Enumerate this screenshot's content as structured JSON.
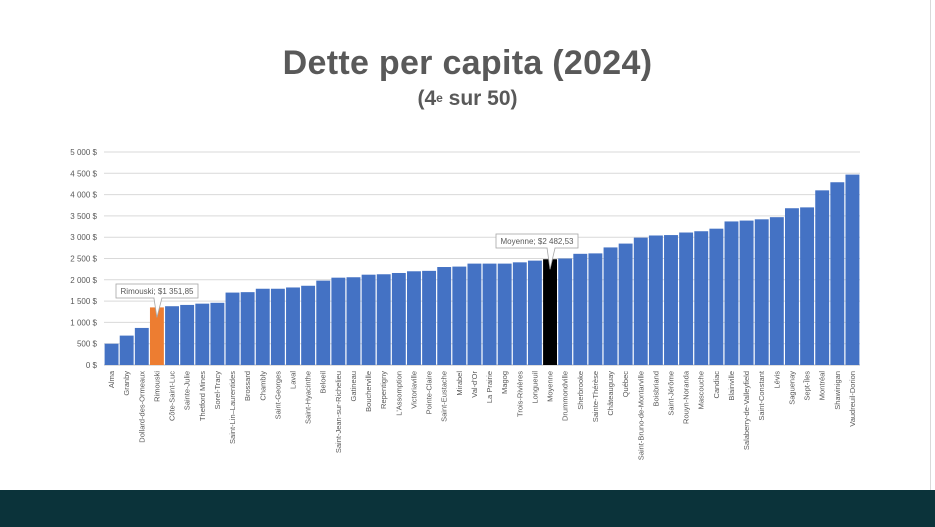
{
  "title": "Dette per capita (2024)",
  "subtitle": {
    "rank_prefix": "(4",
    "rank_suffix": "e",
    "rank_rest": " sur 50)"
  },
  "colors": {
    "bar": "#4472c4",
    "highlight": "#ed7d31",
    "average": "#000000",
    "text": "#595959",
    "footer": "#0b333a"
  },
  "chart_data": {
    "type": "bar",
    "title": "Dette per capita (2024)",
    "subtitle": "(4e sur 50)",
    "xlabel": "",
    "ylabel": "",
    "ylim": [
      0,
      5000
    ],
    "yticks": [
      0,
      500,
      1000,
      1500,
      2000,
      2500,
      3000,
      3500,
      4000,
      4500,
      5000
    ],
    "ytick_labels": [
      "0 $",
      "500 $",
      "1 000 $",
      "1 500 $",
      "2 000 $",
      "2 500 $",
      "3 000 $",
      "3 500 $",
      "4 000 $",
      "4 500 $",
      "5 000 $"
    ],
    "grid": true,
    "categories": [
      "Alma",
      "Granby",
      "Dollard-des-Ormeaux",
      "Rimouski",
      "Côte-Saint-Luc",
      "Sainte-Julie",
      "Thetford Mines",
      "Sorel-Tracy",
      "Saint-Lin–Laurentides",
      "Brossard",
      "Chambly",
      "Saint-Georges",
      "Laval",
      "Saint-Hyacinthe",
      "Beloeil",
      "Saint-Jean-sur-Richelieu",
      "Gatineau",
      "Boucherville",
      "Repentigny",
      "L'Assomption",
      "Victoriaville",
      "Pointe-Claire",
      "Saint-Eustache",
      "Mirabel",
      "Val-d'Or",
      "La Prairie",
      "Magog",
      "Trois-Rivières",
      "Longueuil",
      "Moyenne",
      "Drummondville",
      "Sherbrooke",
      "Sainte-Thérèse",
      "Châteauguay",
      "Québec",
      "Saint-Bruno-de-Montarville",
      "Boisbriand",
      "Saint-Jérôme",
      "Rouyn-Noranda",
      "Mascouche",
      "Candiac",
      "Blainville",
      "Salaberry-de-Valleyfield",
      "Saint-Constant",
      "Lévis",
      "Saguenay",
      "Sept-Îles",
      "Montréal",
      "Shawinigan",
      "Vaudreuil-Dorion"
    ],
    "values": [
      500,
      690,
      870,
      1351.85,
      1380,
      1410,
      1440,
      1460,
      1700,
      1710,
      1790,
      1790,
      1820,
      1860,
      1980,
      2050,
      2060,
      2120,
      2130,
      2160,
      2200,
      2210,
      2300,
      2310,
      2380,
      2380,
      2380,
      2410,
      2450,
      2482.53,
      2500,
      2610,
      2620,
      2760,
      2850,
      2990,
      3040,
      3050,
      3110,
      3140,
      3200,
      3370,
      3390,
      3420,
      3470,
      3680,
      3700,
      4100,
      4290,
      4470
    ],
    "highlight_index": 3,
    "average_index": 29,
    "annotations": [
      {
        "label": "Rimouski;  $1 351,85",
        "index": 3
      },
      {
        "label": "Moyenne;  $2 482,53",
        "index": 29
      }
    ]
  }
}
